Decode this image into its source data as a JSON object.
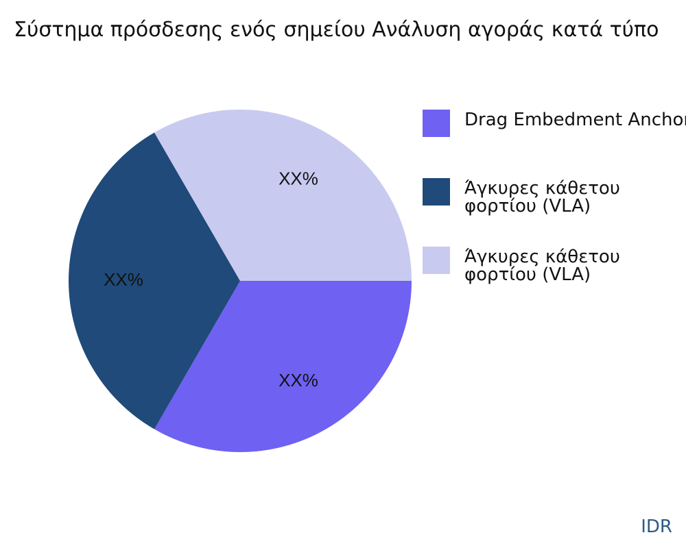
{
  "chart_data": {
    "type": "pie",
    "title": "Σύστημα πρόσδεσης ενός σημείου Ανάλυση αγοράς κατά τύπο",
    "categories": [
      "Drag Embedment Anchors",
      "Άγκυρες κάθετου φορτίου (VLA)",
      "Άγκυρες κάθετου φορτίου (VLA)"
    ],
    "values": [
      33.3,
      33.3,
      33.3
    ],
    "value_labels": [
      "XX%",
      "XX%",
      "XX%"
    ],
    "colors": [
      "#6f61f2",
      "#1f4a7a",
      "#c9caf0"
    ],
    "source": "IDR"
  }
}
